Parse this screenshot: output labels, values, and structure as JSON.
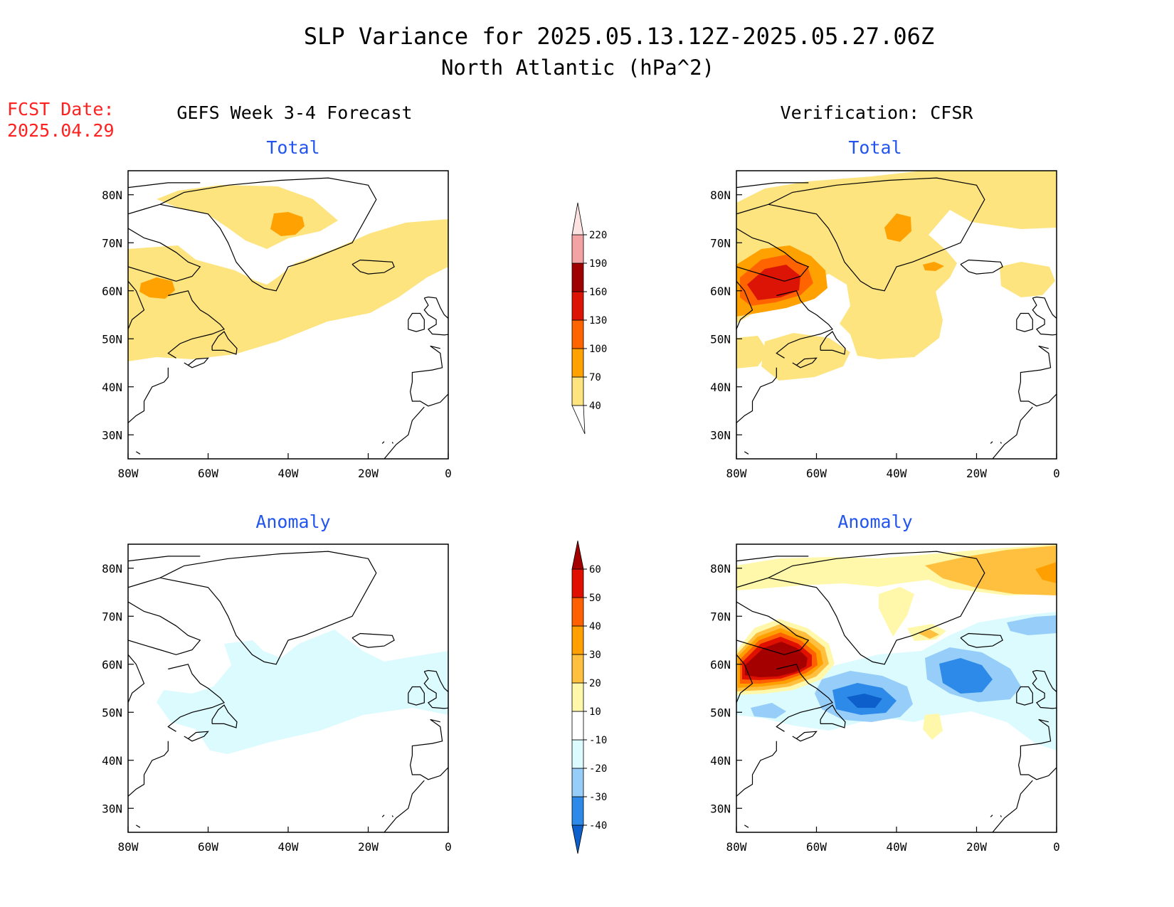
{
  "title": {
    "line1": "SLP Variance for 2025.05.13.12Z-2025.05.27.06Z",
    "line2": "North Atlantic (hPa^2)"
  },
  "fcst": {
    "label": "FCST Date:",
    "date": "2025.04.29"
  },
  "columns": {
    "left": "GEFS Week 3-4 Forecast",
    "right": "Verification: CFSR"
  },
  "panels": {
    "total_label": "Total",
    "anomaly_label": "Anomaly"
  },
  "axes": {
    "lat_labels": [
      "80N",
      "70N",
      "60N",
      "50N",
      "40N",
      "30N"
    ],
    "lon_labels": [
      "80W",
      "60W",
      "40W",
      "20W",
      "0"
    ],
    "lat_range": [
      25,
      85
    ],
    "lon_range": [
      -80,
      0
    ]
  },
  "total_colorbar": {
    "levels": [
      "40",
      "70",
      "100",
      "130",
      "160",
      "190",
      "220"
    ],
    "colors": [
      "#fde47f",
      "#ffa100",
      "#ff6400",
      "#dc1405",
      "#a00000",
      "#f4a3a5",
      "#fde2e2"
    ]
  },
  "anomaly_colorbar": {
    "levels": [
      "-40",
      "-30",
      "-20",
      "-10",
      "10",
      "20",
      "30",
      "40",
      "50",
      "60"
    ],
    "colors": [
      "#0d5fcc",
      "#2d8ae8",
      "#96cdf9",
      "#dbfbff",
      "#ffffff",
      "#fff8aa",
      "#ffc040",
      "#ffa000",
      "#ff6000",
      "#e01000",
      "#a50000"
    ]
  },
  "colors": {
    "title_text": "#000000",
    "subtitle_text": "#2255ee",
    "fcst_text": "#ff2020"
  }
}
